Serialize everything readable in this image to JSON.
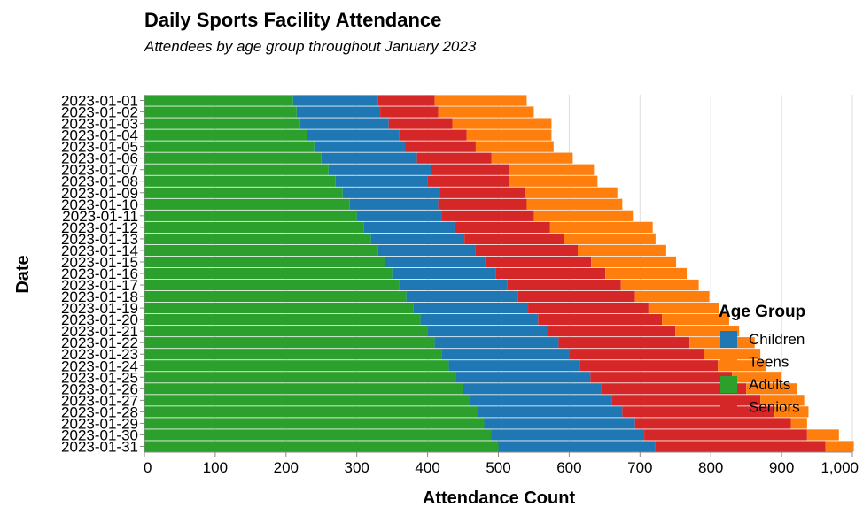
{
  "chart_data": {
    "type": "bar",
    "orientation": "horizontal",
    "stacked": true,
    "title": "Daily Sports Facility Attendance",
    "subtitle": "Attendees by age group throughout January 2023",
    "xlabel": "Attendance Count",
    "ylabel": "Date",
    "xlim": [
      0,
      1000
    ],
    "xticks": [
      0,
      100,
      200,
      300,
      400,
      500,
      600,
      700,
      800,
      900,
      1000
    ],
    "xtick_labels": [
      "0",
      "100",
      "200",
      "300",
      "400",
      "500",
      "600",
      "700",
      "800",
      "900",
      "1,000"
    ],
    "grid": true,
    "legend_title": "Age Group",
    "legend_position": "right",
    "categories": [
      "2023-01-01",
      "2023-01-02",
      "2023-01-03",
      "2023-01-04",
      "2023-01-05",
      "2023-01-06",
      "2023-01-07",
      "2023-01-08",
      "2023-01-09",
      "2023-01-10",
      "2023-01-11",
      "2023-01-12",
      "2023-01-13",
      "2023-01-14",
      "2023-01-15",
      "2023-01-16",
      "2023-01-17",
      "2023-01-18",
      "2023-01-19",
      "2023-01-20",
      "2023-01-21",
      "2023-01-22",
      "2023-01-23",
      "2023-01-24",
      "2023-01-25",
      "2023-01-26",
      "2023-01-27",
      "2023-01-28",
      "2023-01-29",
      "2023-01-30",
      "2023-01-31"
    ],
    "stack_order": [
      "Adults",
      "Children",
      "Seniors",
      "Teens"
    ],
    "series": [
      {
        "name": "Children",
        "color": "#1f77b4",
        "values": [
          120,
          118,
          125,
          130,
          128,
          135,
          145,
          130,
          138,
          125,
          120,
          128,
          132,
          137,
          141,
          146,
          153,
          158,
          162,
          166,
          170,
          175,
          180,
          185,
          190,
          195,
          200,
          205,
          213,
          216,
          222
        ]
      },
      {
        "name": "Teens",
        "color": "#ff7f0e",
        "values": [
          130,
          135,
          140,
          120,
          110,
          115,
          120,
          125,
          130,
          135,
          140,
          145,
          130,
          125,
          120,
          115,
          110,
          105,
          100,
          95,
          90,
          92,
          80,
          68,
          70,
          72,
          62,
          48,
          23,
          45,
          40
        ]
      },
      {
        "name": "Adults",
        "color": "#2ca02c",
        "values": [
          210,
          215,
          220,
          230,
          240,
          250,
          260,
          270,
          280,
          290,
          300,
          310,
          320,
          330,
          340,
          350,
          360,
          370,
          380,
          390,
          400,
          410,
          420,
          430,
          440,
          450,
          460,
          470,
          480,
          490,
          500
        ]
      },
      {
        "name": "Seniors",
        "color": "#d62728",
        "values": [
          80,
          82,
          90,
          95,
          100,
          105,
          110,
          115,
          120,
          125,
          130,
          135,
          140,
          145,
          150,
          155,
          160,
          165,
          170,
          175,
          180,
          185,
          190,
          195,
          200,
          205,
          210,
          215,
          220,
          230,
          240
        ]
      }
    ]
  }
}
